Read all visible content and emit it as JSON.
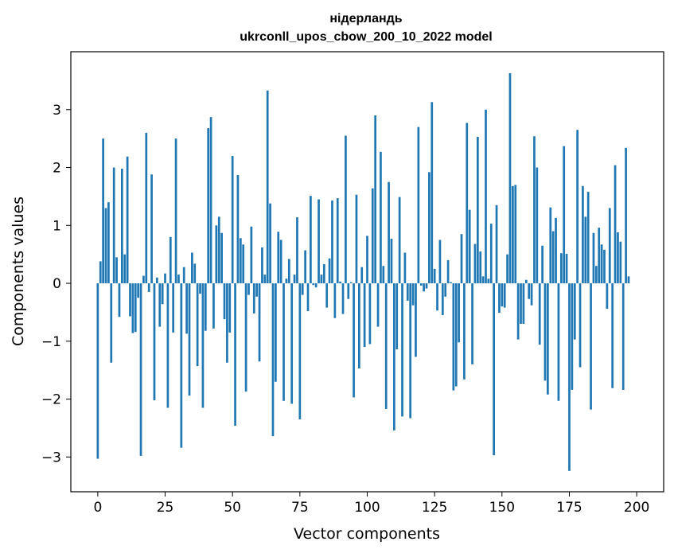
{
  "chart_data": {
    "type": "bar",
    "title_line1": "нідерландь",
    "title_line2": "ukrconll_upos_cbow_200_10_2022 model",
    "xlabel": "Vector components",
    "ylabel": "Components values",
    "xlim": [
      -10,
      210
    ],
    "ylim": [
      -3.6,
      4.0
    ],
    "x_ticks": [
      0,
      25,
      50,
      75,
      100,
      125,
      150,
      175,
      200
    ],
    "y_ticks": [
      -3,
      -2,
      -1,
      0,
      1,
      2,
      3
    ],
    "x_tick_labels": [
      "0",
      "25",
      "50",
      "75",
      "100",
      "125",
      "150",
      "175",
      "200"
    ],
    "y_tick_labels": [
      "−3",
      "−2",
      "−1",
      "0",
      "1",
      "2",
      "3"
    ],
    "grid": false,
    "bar_color": "#1f77b4",
    "values": [
      -3.03,
      0.38,
      2.5,
      1.3,
      1.4,
      -1.37,
      2.0,
      0.45,
      -0.58,
      1.98,
      0.5,
      2.19,
      -0.57,
      -0.86,
      -0.84,
      -0.25,
      -2.98,
      0.13,
      2.6,
      -0.15,
      1.88,
      -2.02,
      0.1,
      -0.75,
      -0.36,
      0.17,
      -2.15,
      0.8,
      -0.85,
      2.5,
      0.15,
      -2.84,
      0.28,
      -0.87,
      -1.94,
      0.53,
      0.34,
      -1.43,
      -0.18,
      -2.15,
      -0.82,
      2.68,
      2.87,
      -0.78,
      1.0,
      1.15,
      0.87,
      -0.62,
      -1.37,
      -0.85,
      2.2,
      -2.46,
      1.87,
      0.78,
      0.67,
      -1.87,
      -0.2,
      0.98,
      -0.52,
      -0.23,
      -1.35,
      0.62,
      0.15,
      3.33,
      1.38,
      -2.64,
      -1.7,
      0.89,
      0.75,
      -2.03,
      0.08,
      0.42,
      -2.08,
      0.15,
      1.14,
      -2.35,
      -0.2,
      0.57,
      -0.48,
      1.51,
      -0.03,
      -0.07,
      1.45,
      0.15,
      0.33,
      -0.42,
      0.43,
      1.43,
      -0.6,
      1.47,
      0.03,
      -0.53,
      2.55,
      -0.27,
      0.02,
      -1.97,
      1.53,
      -1.47,
      0.28,
      -1.1,
      0.82,
      -1.05,
      1.64,
      2.9,
      -0.75,
      2.27,
      0.3,
      -2.17,
      1.75,
      0.77,
      -2.54,
      -1.14,
      1.49,
      -2.3,
      0.53,
      -0.3,
      -2.33,
      -0.38,
      -1.27,
      2.7,
      -0.04,
      -0.14,
      -0.09,
      1.92,
      3.13,
      0.25,
      -0.47,
      0.75,
      -0.55,
      -0.23,
      0.4,
      0.02,
      -1.85,
      -1.78,
      -1.02,
      0.85,
      -1.66,
      2.77,
      1.27,
      -1.4,
      0.68,
      2.53,
      0.55,
      0.12,
      3.0,
      0.08,
      1.03,
      -2.97,
      1.35,
      -0.51,
      -0.4,
      -0.42,
      0.5,
      3.63,
      1.68,
      1.7,
      -0.97,
      -0.7,
      -0.7,
      0.06,
      -0.27,
      -0.38,
      2.54,
      2.0,
      -1.06,
      0.65,
      -1.68,
      -1.92,
      1.31,
      0.9,
      1.13,
      -2.03,
      0.52,
      2.37,
      0.51,
      -3.24,
      -1.84,
      -0.97,
      2.65,
      -1.45,
      1.68,
      1.15,
      1.58,
      -2.18,
      0.87,
      0.3,
      0.96,
      0.67,
      0.58,
      -0.44,
      1.3,
      -1.81,
      2.04,
      0.88,
      0.72,
      -1.84,
      2.34,
      0.12
    ]
  }
}
